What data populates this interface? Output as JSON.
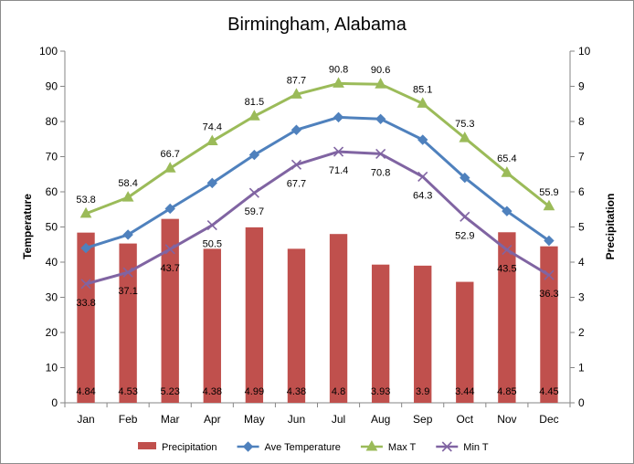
{
  "chart_data": {
    "type": "bar+line",
    "title": "Birmingham, Alabama",
    "categories": [
      "Jan",
      "Feb",
      "Mar",
      "Apr",
      "May",
      "Jun",
      "Jul",
      "Aug",
      "Sep",
      "Oct",
      "Nov",
      "Dec"
    ],
    "y_left": {
      "label": "Temperature",
      "ylim": [
        0,
        100
      ],
      "ticks": [
        0,
        10,
        20,
        30,
        40,
        50,
        60,
        70,
        80,
        90,
        100
      ]
    },
    "y_right": {
      "label": "Precipitation",
      "ylim": [
        0,
        10
      ],
      "ticks": [
        0,
        1,
        2,
        3,
        4,
        5,
        6,
        7,
        8,
        9,
        10
      ]
    },
    "grid": false,
    "legend_position": "bottom",
    "series": [
      {
        "name": "Precipitation",
        "kind": "bar",
        "axis": "right",
        "color": "#C0504D",
        "values": [
          4.84,
          4.53,
          5.23,
          4.38,
          4.99,
          4.38,
          4.8,
          3.93,
          3.9,
          3.44,
          4.85,
          4.45
        ],
        "labels": [
          "4.84",
          "4.53",
          "5.23",
          "4.38",
          "4.99",
          "4.38",
          "4.8",
          "3.93",
          "3.9",
          "3.44",
          "4.85",
          "4.45"
        ]
      },
      {
        "name": "Ave Temperature",
        "kind": "line",
        "axis": "left",
        "color": "#4F81BD",
        "marker": "diamond",
        "values": [
          44.0,
          47.8,
          55.2,
          62.5,
          70.5,
          77.6,
          81.2,
          80.7,
          74.8,
          64.0,
          54.5,
          46.1
        ]
      },
      {
        "name": "Max T",
        "kind": "line",
        "axis": "left",
        "color": "#9BBB59",
        "marker": "triangle",
        "values": [
          53.8,
          58.4,
          66.7,
          74.4,
          81.5,
          87.7,
          90.8,
          90.6,
          85.1,
          75.3,
          65.4,
          55.9
        ],
        "labels": [
          "53.8",
          "58.4",
          "66.7",
          "74.4",
          "81.5",
          "87.7",
          "90.8",
          "90.6",
          "85.1",
          "75.3",
          "65.4",
          "55.9"
        ]
      },
      {
        "name": "Min T",
        "kind": "line",
        "axis": "left",
        "color": "#8064A2",
        "marker": "x",
        "values": [
          33.8,
          37.1,
          43.7,
          50.5,
          59.7,
          67.7,
          71.4,
          70.8,
          64.3,
          52.9,
          43.5,
          36.3
        ],
        "labels": [
          "33.8",
          "37.1",
          "43.7",
          "50.5",
          "59.7",
          "67.7",
          "71.4",
          "70.8",
          "64.3",
          "52.9",
          "43.5",
          "36.3"
        ]
      }
    ]
  }
}
